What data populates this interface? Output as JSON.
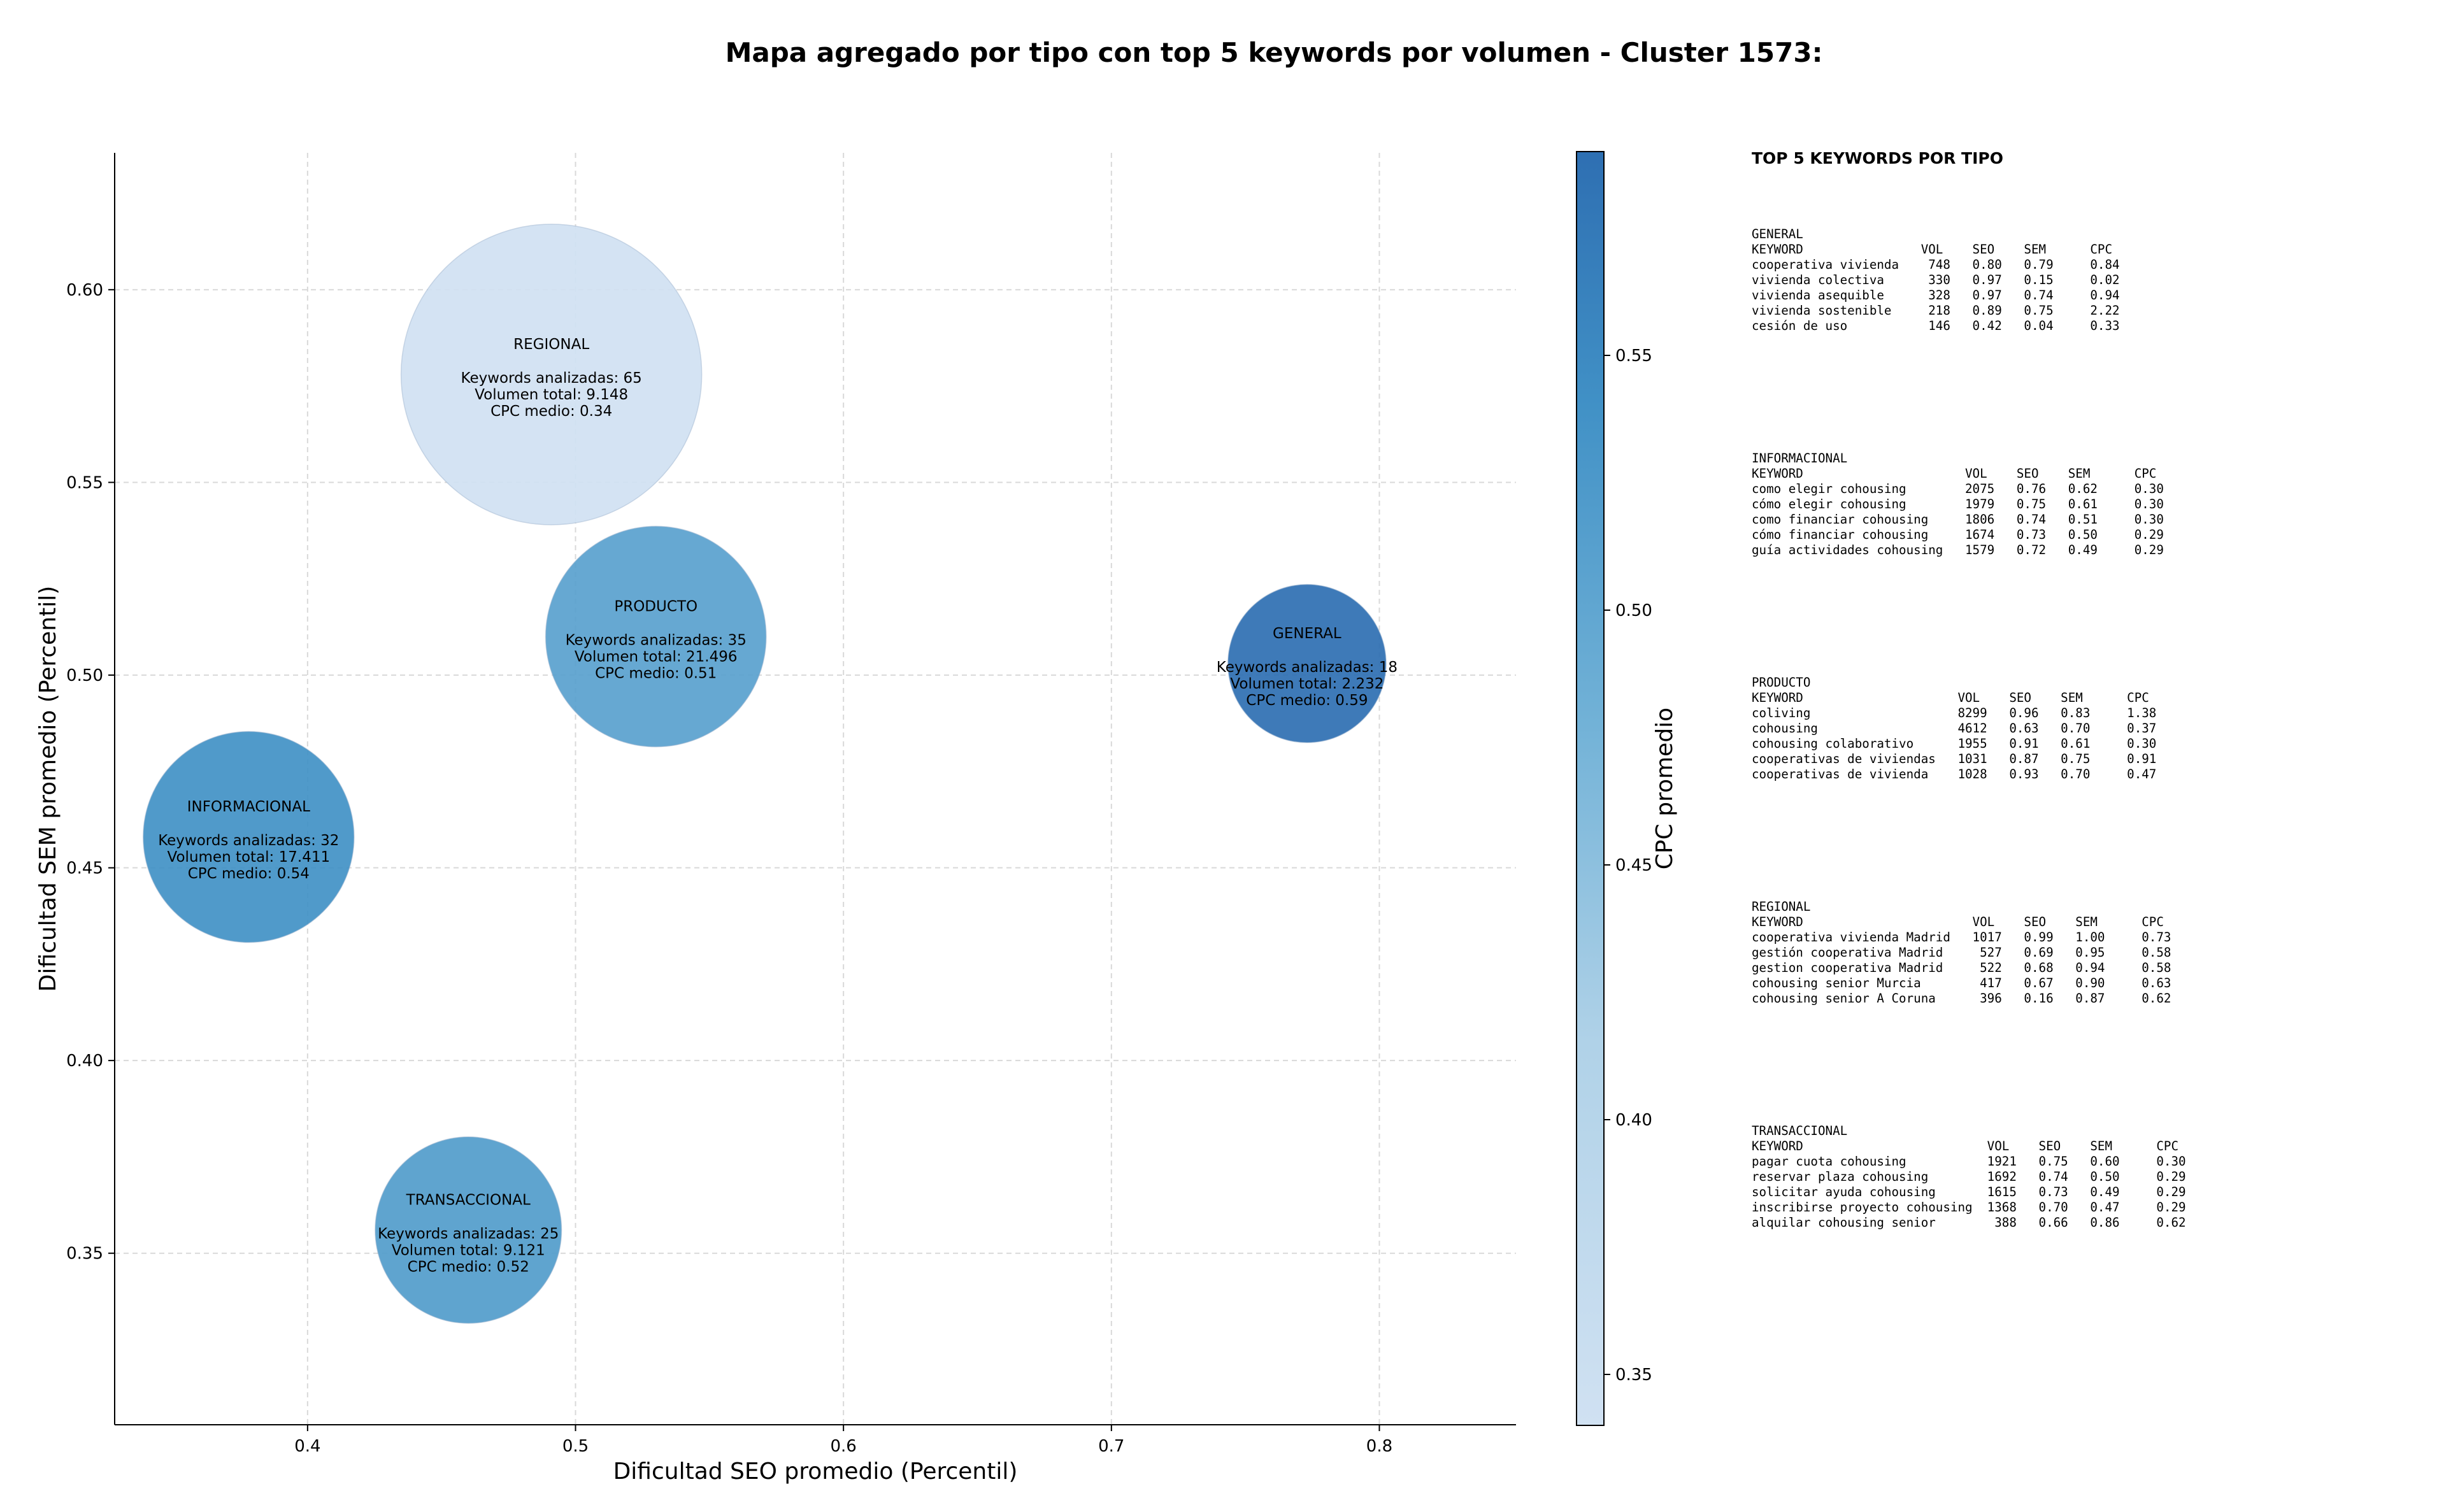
{
  "chart_data": {
    "type": "scatter",
    "title": "Mapa agregado por tipo con top 5 keywords por volumen - Cluster 1573:",
    "xlabel": "Dificultad SEO promedio (Percentil)",
    "ylabel": "Dificultad SEM promedio (Percentil)",
    "xlim": [
      0.328,
      0.851
    ],
    "ylim": [
      0.3055,
      0.6355
    ],
    "xticks": [
      0.4,
      0.5,
      0.6,
      0.7,
      0.8
    ],
    "yticks": [
      0.35,
      0.4,
      0.45,
      0.5,
      0.55,
      0.6
    ],
    "grid": true,
    "colorbar": {
      "label": "CPC promedio",
      "min": 0.34,
      "max": 0.59,
      "ticks": [
        0.35,
        0.4,
        0.45,
        0.5,
        0.55
      ],
      "colormap": "Blues"
    },
    "bubbles": [
      {
        "name": "REGIONAL",
        "seo": 0.491,
        "sem": 0.578,
        "keywords": 65,
        "volume": 9148,
        "cpc": 0.34,
        "lines": [
          "Keywords analizadas: 65",
          "Volumen total: 9.148",
          "CPC medio: 0.34"
        ]
      },
      {
        "name": "PRODUCTO",
        "seo": 0.53,
        "sem": 0.51,
        "keywords": 35,
        "volume": 21496,
        "cpc": 0.51,
        "lines": [
          "Keywords analizadas: 35",
          "Volumen total: 21.496",
          "CPC medio: 0.51"
        ]
      },
      {
        "name": "GENERAL",
        "seo": 0.773,
        "sem": 0.503,
        "keywords": 18,
        "volume": 2232,
        "cpc": 0.59,
        "lines": [
          "Keywords analizadas: 18",
          "Volumen total: 2.232",
          "CPC medio: 0.59"
        ]
      },
      {
        "name": "INFORMACIONAL",
        "seo": 0.378,
        "sem": 0.458,
        "keywords": 32,
        "volume": 17411,
        "cpc": 0.54,
        "lines": [
          "Keywords analizadas: 32",
          "Volumen total: 17.411",
          "CPC medio: 0.54"
        ]
      },
      {
        "name": "TRANSACCIONAL",
        "seo": 0.46,
        "sem": 0.356,
        "keywords": 25,
        "volume": 9121,
        "cpc": 0.52,
        "lines": [
          "Keywords analizadas: 25",
          "Volumen total: 9.121",
          "CPC medio: 0.52"
        ]
      }
    ]
  },
  "side_panel": {
    "title": "TOP 5 KEYWORDS POR TIPO",
    "blocks": [
      {
        "type": "GENERAL",
        "table": "GENERAL\nKEYWORD                VOL    SEO    SEM      CPC\ncooperativa vivienda    748   0.80   0.79     0.84\nvivienda colectiva      330   0.97   0.15     0.02\nvivienda asequible      328   0.97   0.74     0.94\nvivienda sostenible     218   0.89   0.75     2.22\ncesión de uso           146   0.42   0.04     0.33"
      },
      {
        "type": "INFORMACIONAL",
        "table": "INFORMACIONAL\nKEYWORD                      VOL    SEO    SEM      CPC\ncomo elegir cohousing        2075   0.76   0.62     0.30\ncómo elegir cohousing        1979   0.75   0.61     0.30\ncomo financiar cohousing     1806   0.74   0.51     0.30\ncómo financiar cohousing     1674   0.73   0.50     0.29\nguía actividades cohousing   1579   0.72   0.49     0.29"
      },
      {
        "type": "PRODUCTO",
        "table": "PRODUCTO\nKEYWORD                     VOL    SEO    SEM      CPC\ncoliving                    8299   0.96   0.83     1.38\ncohousing                   4612   0.63   0.70     0.37\ncohousing colaborativo      1955   0.91   0.61     0.30\ncooperativas de viviendas   1031   0.87   0.75     0.91\ncooperativas de vivienda    1028   0.93   0.70     0.47"
      },
      {
        "type": "REGIONAL",
        "table": "REGIONAL\nKEYWORD                       VOL    SEO    SEM      CPC\ncooperativa vivienda Madrid   1017   0.99   1.00     0.73\ngestión cooperativa Madrid     527   0.69   0.95     0.58\ngestion cooperativa Madrid     522   0.68   0.94     0.58\ncohousing senior Murcia        417   0.67   0.90     0.63\ncohousing senior A Coruna      396   0.16   0.87     0.62"
      },
      {
        "type": "TRANSACCIONAL",
        "table": "TRANSACCIONAL\nKEYWORD                         VOL    SEO    SEM      CPC\npagar cuota cohousing           1921   0.75   0.60     0.30\nreservar plaza cohousing        1692   0.74   0.50     0.29\nsolicitar ayuda cohousing       1615   0.73   0.49     0.29\ninscribirse proyecto cohousing  1368   0.70   0.47     0.29\nalquilar cohousing senior        388   0.66   0.86     0.62"
      }
    ]
  }
}
